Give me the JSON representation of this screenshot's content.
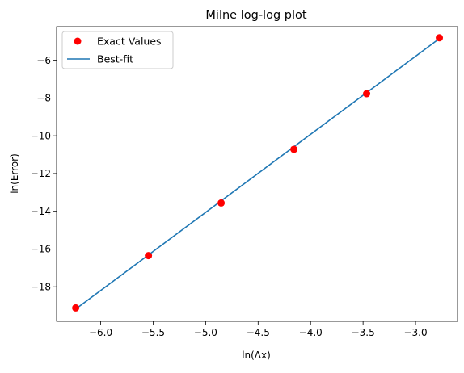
{
  "chart_data": {
    "type": "scatter",
    "title": "Milne log-log plot",
    "xlabel": "ln(Δx)",
    "ylabel": "ln(Error)",
    "xlim": [
      -6.42,
      -2.6
    ],
    "ylim": [
      -19.83,
      -4.22
    ],
    "xticks": [
      -6.0,
      -5.5,
      -5.0,
      -4.5,
      -4.0,
      -3.5,
      -3.0
    ],
    "xtick_labels": [
      "−6.0",
      "−5.5",
      "−5.0",
      "−4.5",
      "−4.0",
      "−3.5",
      "−3.0"
    ],
    "yticks": [
      -18,
      -16,
      -14,
      -12,
      -10,
      -8,
      -6
    ],
    "ytick_labels": [
      "−18",
      "−16",
      "−14",
      "−12",
      "−10",
      "−8",
      "−6"
    ],
    "grid": false,
    "legend_position": "top-left",
    "series": [
      {
        "name": "Exact Values",
        "kind": "scatter",
        "color": "#ff0000",
        "x": [
          -6.238,
          -5.545,
          -4.852,
          -4.159,
          -3.466,
          -2.773
        ],
        "y": [
          -19.12,
          -16.35,
          -13.56,
          -10.72,
          -7.77,
          -4.81
        ]
      },
      {
        "name": "Best-fit",
        "kind": "line",
        "color": "#1f77b4",
        "x": [
          -6.238,
          -2.773
        ],
        "y": [
          -19.18,
          -4.85
        ]
      }
    ]
  }
}
